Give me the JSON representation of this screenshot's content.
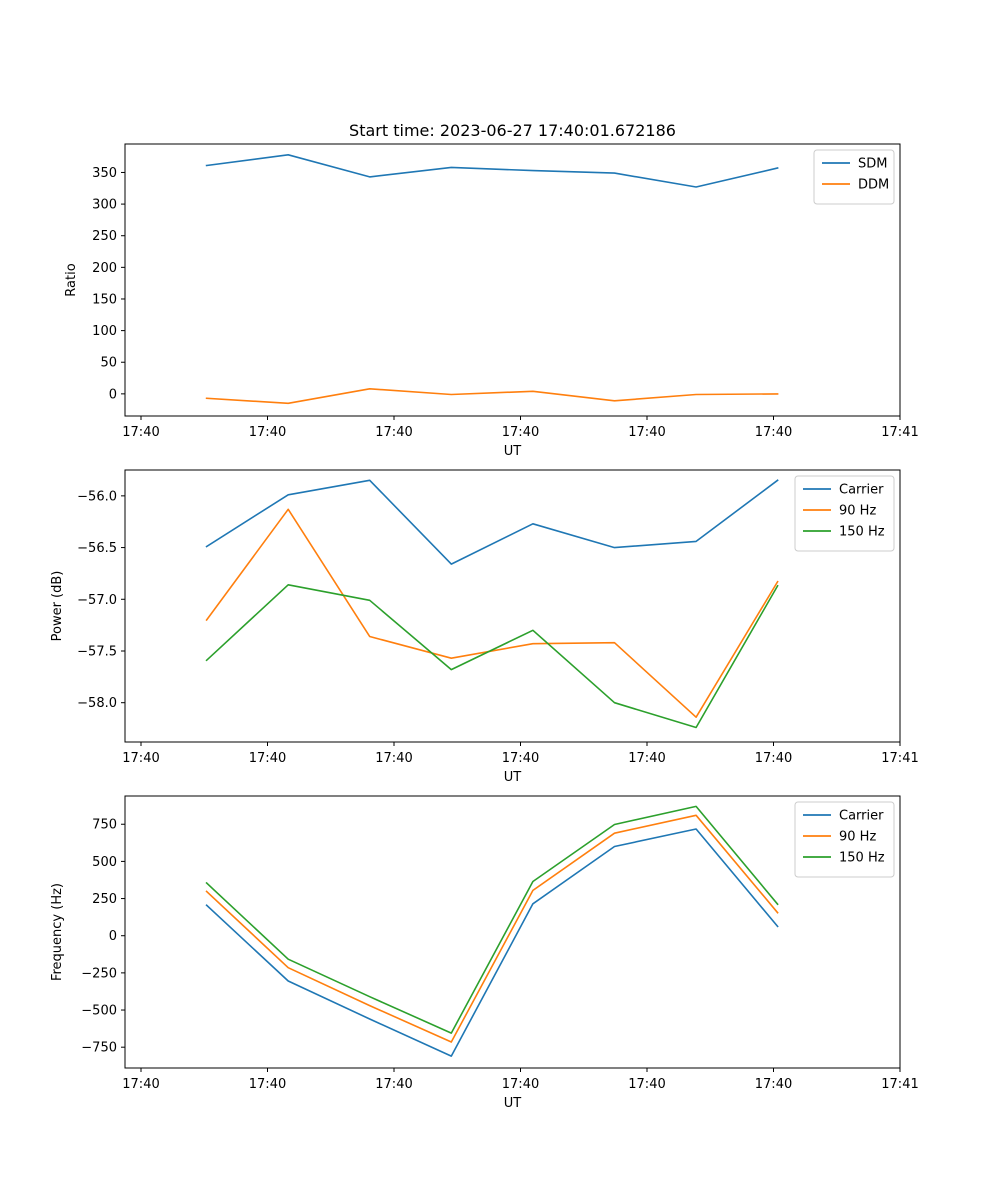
{
  "figure": {
    "title": "Start time: 2023-06-27 17:40:01.672186"
  },
  "chart_data": [
    {
      "type": "line",
      "title": "Start time: 2023-06-27 17:40:01.672186",
      "xlabel": "UT",
      "ylabel": "Ratio",
      "x_tick_labels": [
        "17:40",
        "17:40",
        "17:40",
        "17:40",
        "17:40",
        "17:40",
        "17:41"
      ],
      "xlim": [
        0,
        9.5
      ],
      "x": [
        1,
        2,
        3,
        4,
        5,
        6,
        7,
        8
      ],
      "ylim": [
        -35,
        395
      ],
      "y_ticks": [
        0,
        50,
        100,
        150,
        200,
        250,
        300,
        350
      ],
      "y_tick_labels": [
        "0",
        "50",
        "100",
        "150",
        "200",
        "250",
        "300",
        "350"
      ],
      "grid": false,
      "legend_position": "top-right",
      "series": [
        {
          "name": "SDM",
          "color": "#1f77b4",
          "values": [
            361,
            378,
            343,
            358,
            353,
            349,
            327,
            357
          ]
        },
        {
          "name": "DDM",
          "color": "#ff7f0e",
          "values": [
            -7,
            -15,
            8,
            -1,
            4,
            -11,
            -1,
            0
          ]
        }
      ]
    },
    {
      "type": "line",
      "title": "",
      "xlabel": "UT",
      "ylabel": "Power (dB)",
      "x_tick_labels": [
        "17:40",
        "17:40",
        "17:40",
        "17:40",
        "17:40",
        "17:40",
        "17:41"
      ],
      "xlim": [
        0,
        9.5
      ],
      "x": [
        1,
        2,
        3,
        4,
        5,
        6,
        7,
        8
      ],
      "ylim": [
        -58.38,
        -55.75
      ],
      "y_ticks": [
        -58.0,
        -57.5,
        -57.0,
        -56.5,
        -56.0
      ],
      "y_tick_labels": [
        "−58.0",
        "−57.5",
        "−57.0",
        "−56.5",
        "−56.0"
      ],
      "grid": false,
      "legend_position": "top-right",
      "series": [
        {
          "name": "Carrier",
          "color": "#1f77b4",
          "values": [
            -56.49,
            -55.99,
            -55.85,
            -56.66,
            -56.27,
            -56.5,
            -56.44,
            -55.85
          ]
        },
        {
          "name": "90 Hz",
          "color": "#ff7f0e",
          "values": [
            -57.2,
            -56.13,
            -57.36,
            -57.57,
            -57.43,
            -57.42,
            -58.14,
            -56.83
          ]
        },
        {
          "name": "150 Hz",
          "color": "#2ca02c",
          "values": [
            -57.59,
            -56.86,
            -57.01,
            -57.68,
            -57.3,
            -58.0,
            -58.24,
            -56.87
          ]
        }
      ]
    },
    {
      "type": "line",
      "title": "",
      "xlabel": "UT",
      "ylabel": "Frequency (Hz)",
      "x_tick_labels": [
        "17:40",
        "17:40",
        "17:40",
        "17:40",
        "17:40",
        "17:40",
        "17:41"
      ],
      "xlim": [
        0,
        9.5
      ],
      "x": [
        1,
        2,
        3,
        4,
        5,
        6,
        7,
        8
      ],
      "ylim": [
        -890,
        940
      ],
      "y_ticks": [
        -750,
        -500,
        -250,
        0,
        250,
        500,
        750
      ],
      "y_tick_labels": [
        "−750",
        "−500",
        "−250",
        "0",
        "250",
        "500",
        "750"
      ],
      "grid": false,
      "legend_position": "top-right",
      "series": [
        {
          "name": "Carrier",
          "color": "#1f77b4",
          "values": [
            205,
            -305,
            -560,
            -810,
            215,
            600,
            718,
            63
          ]
        },
        {
          "name": "90 Hz",
          "color": "#ff7f0e",
          "values": [
            298,
            -215,
            -470,
            -715,
            305,
            690,
            810,
            155
          ]
        },
        {
          "name": "150 Hz",
          "color": "#2ca02c",
          "values": [
            355,
            -158,
            -410,
            -655,
            365,
            748,
            870,
            212
          ]
        }
      ]
    }
  ]
}
